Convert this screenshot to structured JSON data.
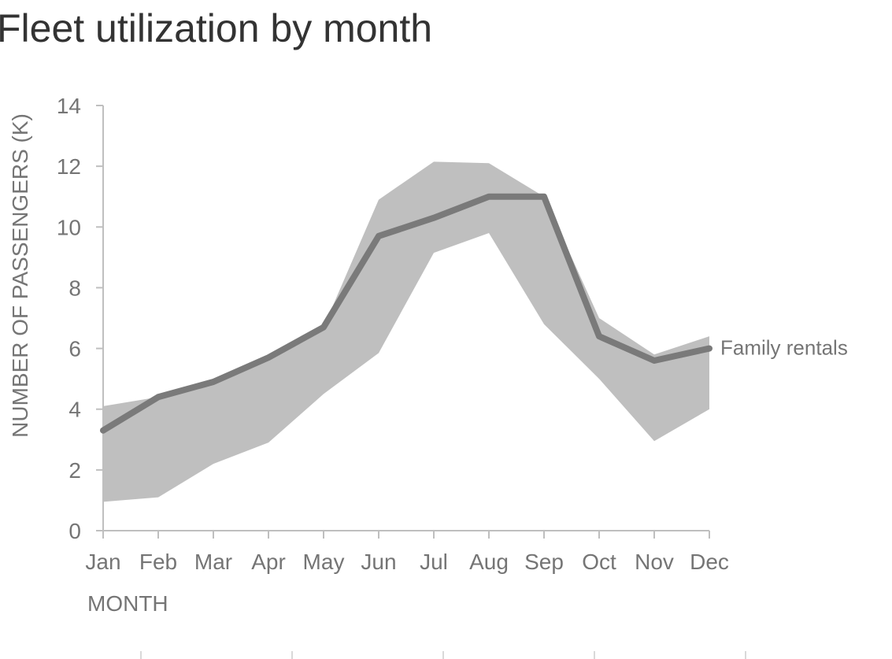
{
  "title": "Fleet utilization by month",
  "colors": {
    "line": "#7a7a7a",
    "band": "#bfbfbf",
    "axis": "#bfbfbf",
    "text": "#757575",
    "title": "#333333"
  },
  "chart_data": {
    "type": "line",
    "title": "Fleet utilization by month",
    "xlabel": "MONTH",
    "ylabel": "NUMBER OF PASSENGERS (K)",
    "categories": [
      "Jan",
      "Feb",
      "Mar",
      "Apr",
      "May",
      "Jun",
      "Jul",
      "Aug",
      "Sep",
      "Oct",
      "Nov",
      "Dec"
    ],
    "ylim": [
      0,
      14
    ],
    "yticks": [
      0,
      2,
      4,
      6,
      8,
      10,
      12,
      14
    ],
    "grid": false,
    "legend": "none",
    "series": [
      {
        "name": "Family rentals",
        "values": [
          3.3,
          4.4,
          4.9,
          5.7,
          6.7,
          9.7,
          10.3,
          11.0,
          11.0,
          6.4,
          5.6,
          6.0
        ]
      }
    ],
    "range_band": {
      "low": [
        0.95,
        1.1,
        2.2,
        2.9,
        4.5,
        5.85,
        9.15,
        9.8,
        6.8,
        5.0,
        2.95,
        4.0
      ],
      "high": [
        4.1,
        4.4,
        4.9,
        5.7,
        6.7,
        10.9,
        12.15,
        12.1,
        11.0,
        7.0,
        5.8,
        6.4
      ]
    }
  }
}
